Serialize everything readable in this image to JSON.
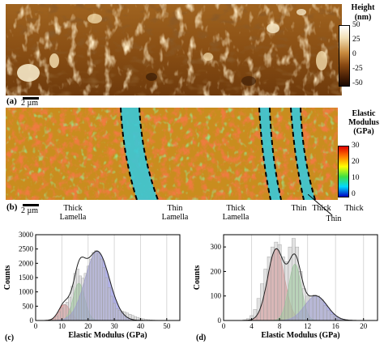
{
  "figure": {
    "panel_a": {
      "label": "(a)",
      "scalebar": "2 µm",
      "colorbar": {
        "title_line1": "Height",
        "title_line2": "(nm)",
        "ticks": [
          "50",
          "25",
          "0",
          "-25",
          "-50"
        ]
      }
    },
    "panel_b": {
      "label": "(b)",
      "scalebar": "2 µm",
      "colorbar": {
        "title_line1": "Elastic",
        "title_line2": "Modulus",
        "title_line3": "(GPa)",
        "ticks": [
          "30",
          "20",
          "10",
          "0"
        ]
      },
      "region_labels": {
        "thick1_line1": "Thick",
        "thick1_line2": "Lamella",
        "thin1_line1": "Thin",
        "thin1_line2": "Lamella",
        "thick2_line1": "Thick",
        "thick2_line2": "Lamella",
        "thin2": "Thin",
        "thick3": "Thick",
        "thin3": "Thin",
        "thick4": "Thick"
      }
    }
  },
  "chart_data": [
    {
      "panel": "(c)",
      "type": "bar",
      "xlabel": "Elastic Modulus (GPa)",
      "ylabel": "Counts",
      "xlim": [
        0,
        55
      ],
      "ylim": [
        0,
        3000
      ],
      "x_ticks": [
        "0",
        "10",
        "20",
        "30",
        "40",
        "50"
      ],
      "y_ticks": [
        "0",
        "500",
        "1000",
        "1500",
        "2000",
        "2500",
        "3000"
      ],
      "histogram": {
        "bin_centers": [
          5,
          6,
          7,
          8,
          9,
          10,
          11,
          12,
          13,
          14,
          15,
          16,
          17,
          18,
          19,
          20,
          21,
          22,
          23,
          24,
          25,
          26,
          27,
          28,
          29,
          30,
          31,
          32,
          33,
          34,
          35,
          36,
          37,
          38,
          39,
          40,
          41,
          42,
          43,
          44,
          45,
          46,
          47,
          48,
          49,
          50
        ],
        "values": [
          5,
          20,
          60,
          160,
          300,
          440,
          560,
          640,
          820,
          1200,
          1650,
          1800,
          1560,
          1480,
          1650,
          1900,
          2150,
          2380,
          2450,
          2350,
          2150,
          1850,
          1500,
          1150,
          850,
          600,
          420,
          360,
          330,
          300,
          260,
          220,
          180,
          140,
          110,
          80,
          60,
          40,
          30,
          20,
          15,
          10,
          8,
          5,
          3,
          2
        ]
      },
      "components": [
        {
          "color": "#e88a8a",
          "center": 11,
          "amplitude": 560
        },
        {
          "color": "#8fd68f",
          "center": 16.5,
          "amplitude": 1300
        },
        {
          "color": "#8c8ce0",
          "center": 23.5,
          "amplitude": 2420
        }
      ]
    },
    {
      "panel": "(d)",
      "type": "bar",
      "xlabel": "Elastic Modulus (GPa)",
      "ylabel": "Counts",
      "xlim": [
        0,
        22
      ],
      "ylim": [
        0,
        350
      ],
      "x_ticks": [
        "0",
        "4",
        "8",
        "12",
        "16",
        "20"
      ],
      "y_ticks": [
        "0",
        "100",
        "200",
        "300"
      ],
      "histogram": {
        "bin_centers": [
          3,
          3.5,
          4,
          4.5,
          5,
          5.5,
          6,
          6.5,
          7,
          7.5,
          8,
          8.5,
          9,
          9.5,
          10,
          10.5,
          11,
          11.5,
          12,
          12.5,
          13,
          13.5,
          14,
          14.5,
          15,
          15.5,
          16,
          16.5,
          17,
          17.5,
          18
        ],
        "values": [
          3,
          8,
          20,
          45,
          90,
          150,
          210,
          260,
          300,
          320,
          310,
          260,
          240,
          300,
          335,
          300,
          200,
          130,
          100,
          100,
          105,
          100,
          85,
          60,
          40,
          25,
          15,
          8,
          5,
          3,
          2
        ]
      },
      "components": [
        {
          "color": "#e88a8a",
          "center": 7.5,
          "amplitude": 290
        },
        {
          "color": "#8fd68f",
          "center": 10.2,
          "amplitude": 230
        },
        {
          "color": "#8c8ce0",
          "center": 13.2,
          "amplitude": 100
        }
      ]
    }
  ]
}
